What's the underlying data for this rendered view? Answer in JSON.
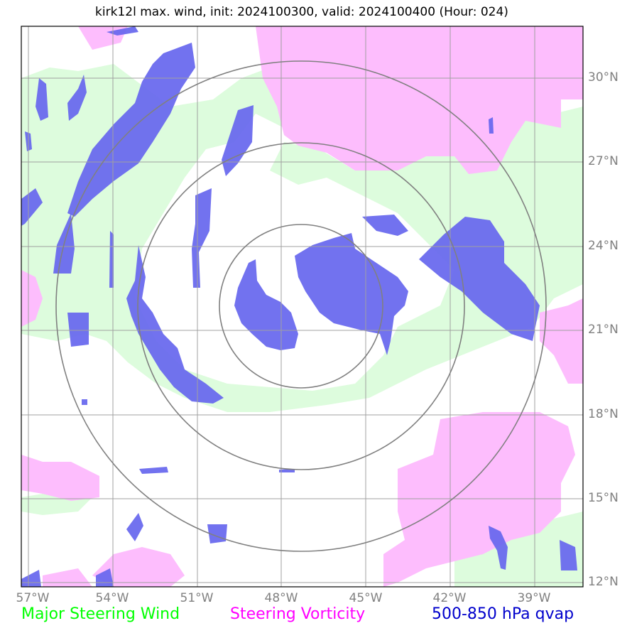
{
  "title": "kirk12l max. wind, init: 2024100300, valid: 2024100400 (Hour: 024)",
  "axes": {
    "lon_labels": [
      "57°W",
      "54°W",
      "51°W",
      "48°W",
      "45°W",
      "42°W",
      "39°W"
    ],
    "lon_values": [
      -57,
      -54,
      -51,
      -48,
      -45,
      -42,
      -39
    ],
    "lat_labels": [
      "30°N",
      "27°N",
      "24°N",
      "21°N",
      "18°N",
      "15°N",
      "12°N"
    ],
    "lat_values": [
      30,
      27,
      24,
      21,
      18,
      15,
      12
    ],
    "lon_range": [
      -57.0,
      -37.2
    ],
    "lat_range": [
      11.8,
      31.8
    ]
  },
  "storm_center": {
    "lon": -47.4,
    "lat": 21.9
  },
  "range_rings_deg": [
    2.9,
    5.8,
    8.7
  ],
  "legend": {
    "wind": {
      "label": "Major Steering Wind",
      "color": "#00ff00"
    },
    "vorticity": {
      "label": "Steering Vorticity",
      "color": "#ff00ff"
    },
    "qvap": {
      "label": "500-850 hPa qvap",
      "color": "#0000cc"
    }
  },
  "colors": {
    "wind_fill": "#ddfcdd",
    "vorticity_fill": "#fdbdfd",
    "qvap_fill": "#6666ee",
    "grid": "#a0a0a0",
    "rings": "#808080"
  }
}
